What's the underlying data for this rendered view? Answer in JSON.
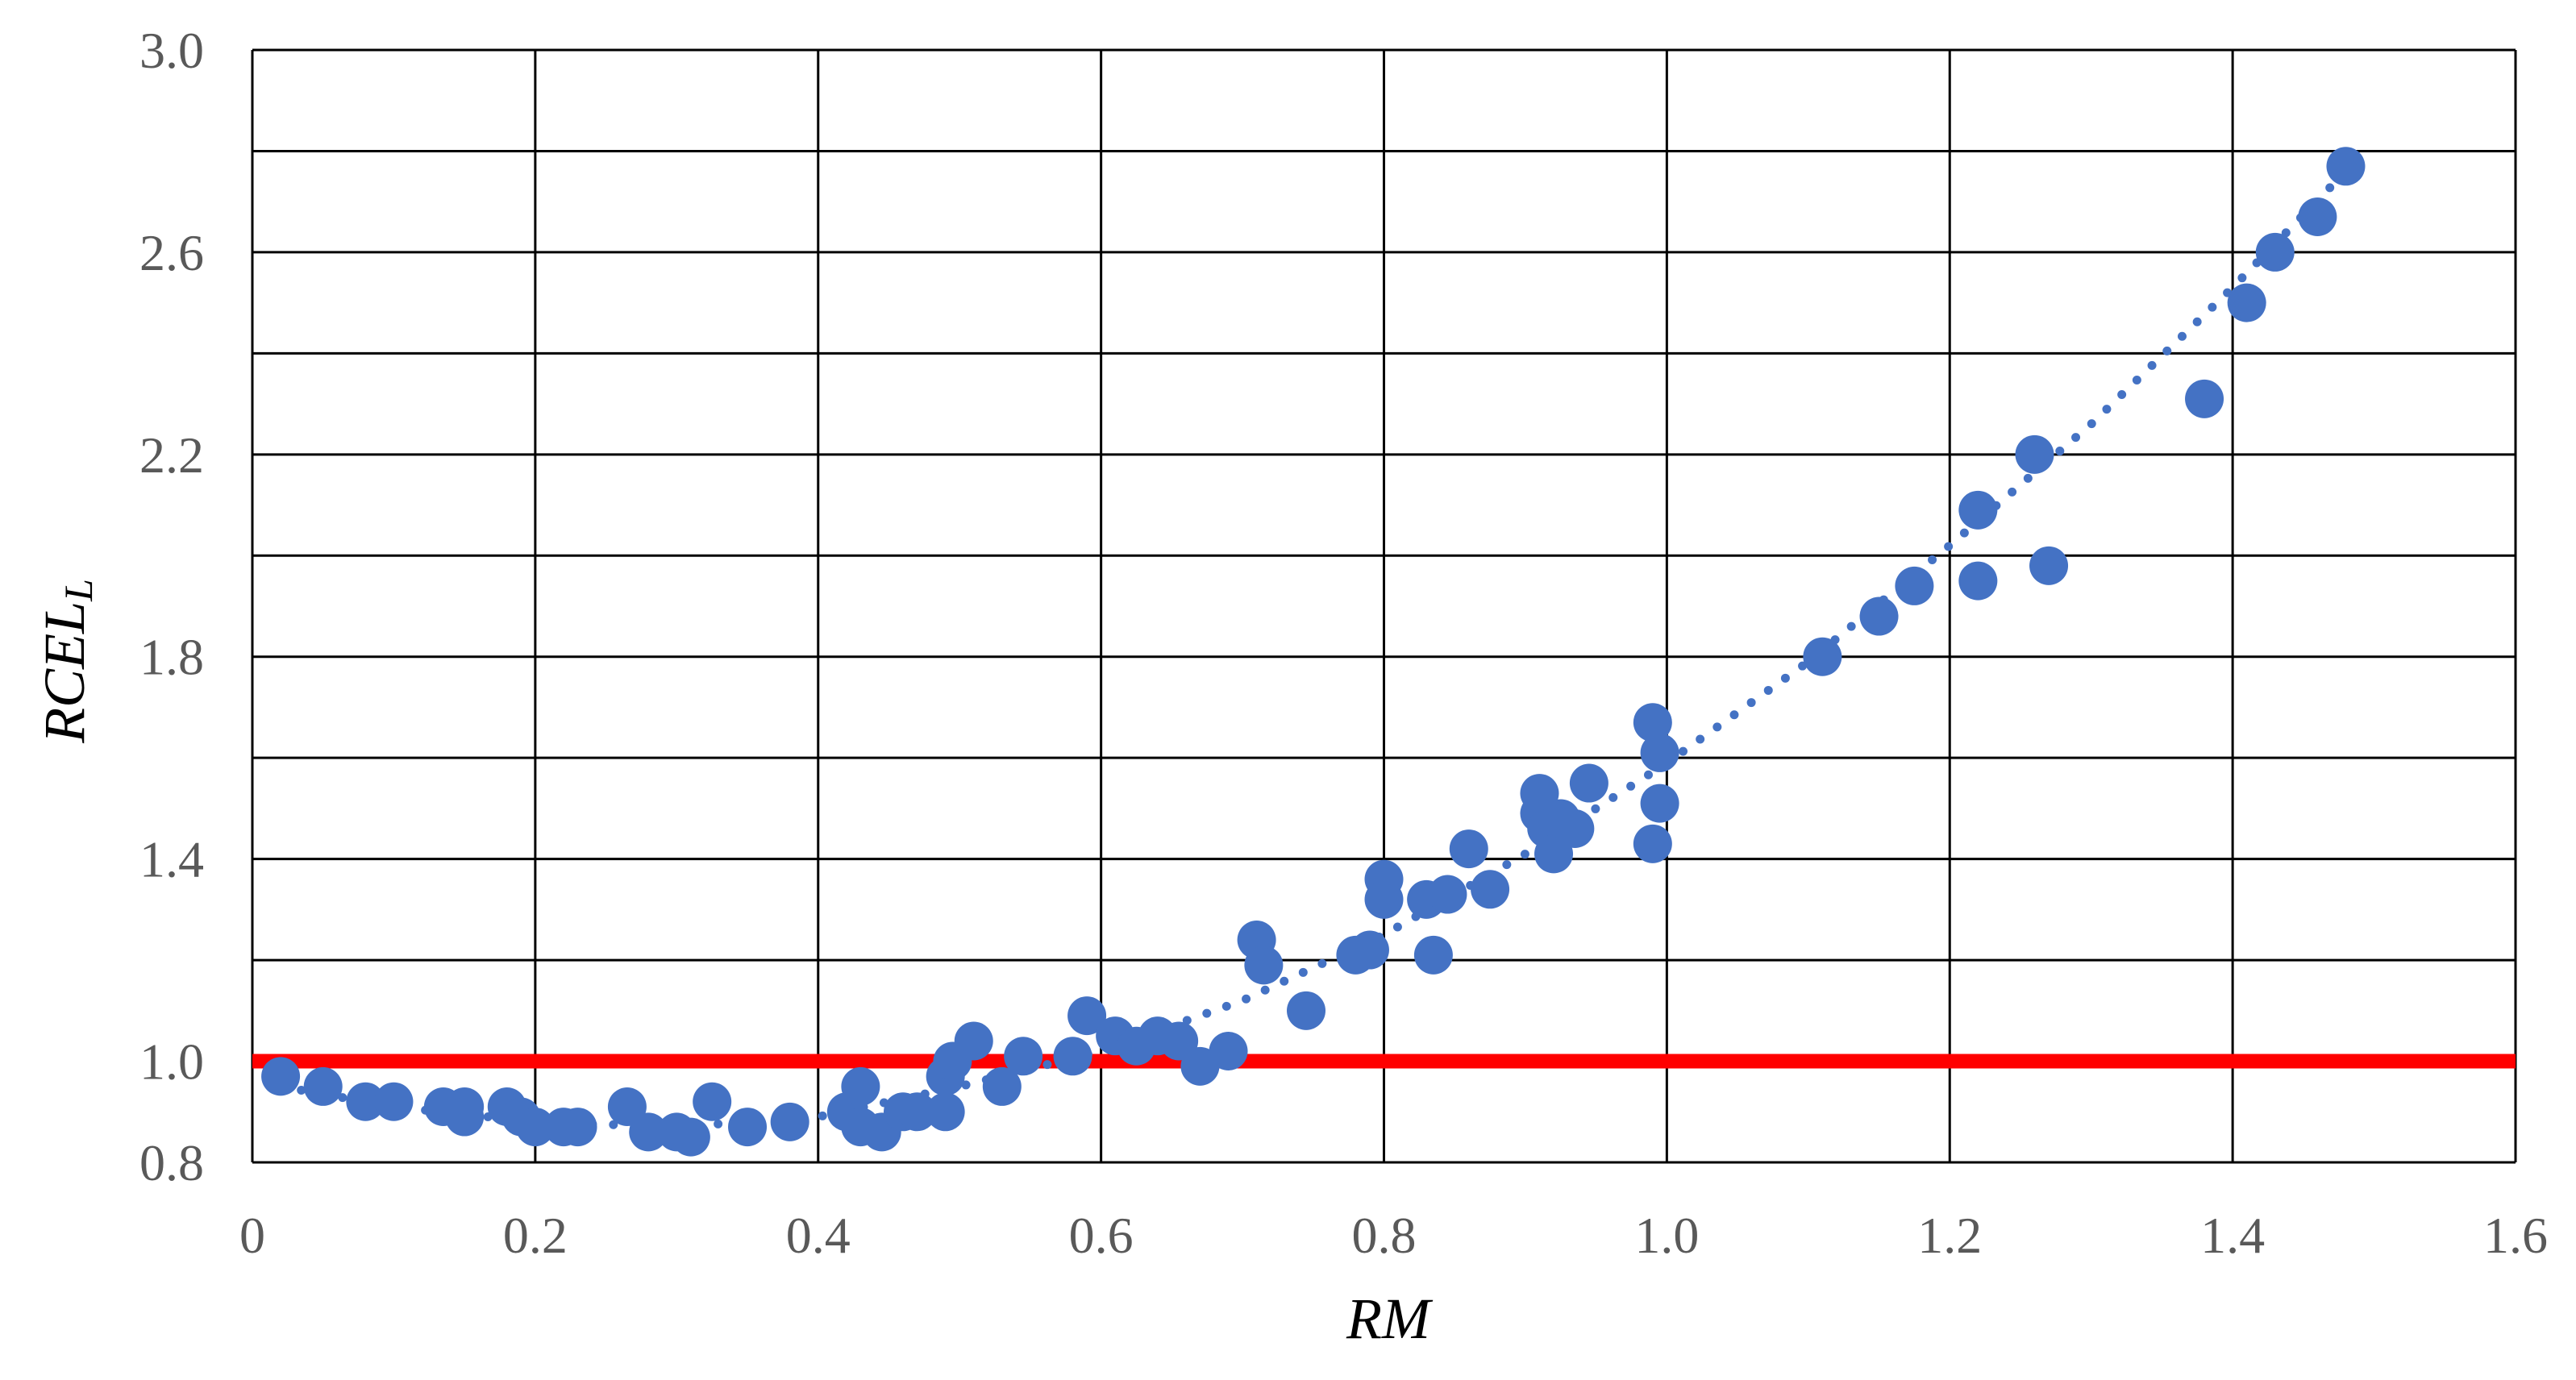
{
  "chart_data": {
    "type": "scatter",
    "xlabel": "RM",
    "ylabel": "RCEL",
    "ylabel_subscript": "L",
    "xlim": [
      0,
      1.6
    ],
    "ylim": [
      0.8,
      3.0
    ],
    "x_ticks": [
      "0",
      "0.2",
      "0.4",
      "0.6",
      "0.8",
      "1.0",
      "1.2",
      "1.4",
      "1.6"
    ],
    "y_ticks": [
      "0.8",
      "1.0",
      "1.4",
      "1.8",
      "2.2",
      "2.6",
      "3.0"
    ],
    "y_tick_values": [
      0.8,
      1.0,
      1.4,
      1.8,
      2.2,
      2.6,
      3.0
    ],
    "x_gridlines": [
      0,
      0.2,
      0.4,
      0.6,
      0.8,
      1.0,
      1.2,
      1.4,
      1.6
    ],
    "y_gridlines": [
      1.0,
      1.2,
      1.4,
      1.6,
      1.8,
      2.0,
      2.2,
      2.4,
      2.6,
      2.8,
      3.0
    ],
    "grid": true,
    "colors": {
      "points": "#4472C4",
      "trendline": "#4472C4",
      "reference_line": "#FF0000",
      "grid": "#000000"
    },
    "reference_line": {
      "y": 1.0
    },
    "trendline": {
      "style": "dotted",
      "x": [
        0.02,
        0.1,
        0.2,
        0.3,
        0.4,
        0.5,
        0.6,
        0.7,
        0.8,
        0.9,
        1.0,
        1.1,
        1.2,
        1.3,
        1.4,
        1.48
      ],
      "y": [
        0.95,
        0.91,
        0.88,
        0.87,
        0.89,
        0.95,
        1.02,
        1.12,
        1.25,
        1.41,
        1.59,
        1.79,
        2.02,
        2.26,
        2.53,
        2.76
      ]
    },
    "points": [
      {
        "x": 0.02,
        "y": 0.97
      },
      {
        "x": 0.05,
        "y": 0.95
      },
      {
        "x": 0.08,
        "y": 0.92
      },
      {
        "x": 0.1,
        "y": 0.92
      },
      {
        "x": 0.135,
        "y": 0.91
      },
      {
        "x": 0.15,
        "y": 0.91
      },
      {
        "x": 0.15,
        "y": 0.89
      },
      {
        "x": 0.18,
        "y": 0.91
      },
      {
        "x": 0.19,
        "y": 0.89
      },
      {
        "x": 0.2,
        "y": 0.87
      },
      {
        "x": 0.22,
        "y": 0.87
      },
      {
        "x": 0.23,
        "y": 0.87
      },
      {
        "x": 0.265,
        "y": 0.91
      },
      {
        "x": 0.28,
        "y": 0.86
      },
      {
        "x": 0.3,
        "y": 0.86
      },
      {
        "x": 0.31,
        "y": 0.85
      },
      {
        "x": 0.325,
        "y": 0.92
      },
      {
        "x": 0.35,
        "y": 0.87
      },
      {
        "x": 0.38,
        "y": 0.88
      },
      {
        "x": 0.42,
        "y": 0.9
      },
      {
        "x": 0.43,
        "y": 0.95
      },
      {
        "x": 0.43,
        "y": 0.87
      },
      {
        "x": 0.445,
        "y": 0.86
      },
      {
        "x": 0.46,
        "y": 0.9
      },
      {
        "x": 0.47,
        "y": 0.9
      },
      {
        "x": 0.49,
        "y": 0.97
      },
      {
        "x": 0.49,
        "y": 0.9
      },
      {
        "x": 0.495,
        "y": 1.0
      },
      {
        "x": 0.51,
        "y": 1.04
      },
      {
        "x": 0.53,
        "y": 0.95
      },
      {
        "x": 0.545,
        "y": 1.01
      },
      {
        "x": 0.58,
        "y": 1.01
      },
      {
        "x": 0.59,
        "y": 1.09
      },
      {
        "x": 0.61,
        "y": 1.05
      },
      {
        "x": 0.625,
        "y": 1.03
      },
      {
        "x": 0.64,
        "y": 1.05
      },
      {
        "x": 0.655,
        "y": 1.04
      },
      {
        "x": 0.67,
        "y": 0.99
      },
      {
        "x": 0.69,
        "y": 1.02
      },
      {
        "x": 0.71,
        "y": 1.24
      },
      {
        "x": 0.715,
        "y": 1.19
      },
      {
        "x": 0.745,
        "y": 1.1
      },
      {
        "x": 0.78,
        "y": 1.21
      },
      {
        "x": 0.79,
        "y": 1.22
      },
      {
        "x": 0.8,
        "y": 1.36
      },
      {
        "x": 0.8,
        "y": 1.32
      },
      {
        "x": 0.83,
        "y": 1.32
      },
      {
        "x": 0.835,
        "y": 1.21
      },
      {
        "x": 0.845,
        "y": 1.33
      },
      {
        "x": 0.86,
        "y": 1.42
      },
      {
        "x": 0.875,
        "y": 1.34
      },
      {
        "x": 0.91,
        "y": 1.53
      },
      {
        "x": 0.91,
        "y": 1.49
      },
      {
        "x": 0.915,
        "y": 1.46
      },
      {
        "x": 0.92,
        "y": 1.41
      },
      {
        "x": 0.925,
        "y": 1.48
      },
      {
        "x": 0.935,
        "y": 1.46
      },
      {
        "x": 0.945,
        "y": 1.55
      },
      {
        "x": 0.99,
        "y": 1.67
      },
      {
        "x": 0.99,
        "y": 1.43
      },
      {
        "x": 0.995,
        "y": 1.61
      },
      {
        "x": 0.995,
        "y": 1.51
      },
      {
        "x": 1.11,
        "y": 1.8
      },
      {
        "x": 1.15,
        "y": 1.88
      },
      {
        "x": 1.175,
        "y": 1.94
      },
      {
        "x": 1.22,
        "y": 2.09
      },
      {
        "x": 1.22,
        "y": 1.95
      },
      {
        "x": 1.26,
        "y": 2.2
      },
      {
        "x": 1.27,
        "y": 1.98
      },
      {
        "x": 1.38,
        "y": 2.31
      },
      {
        "x": 1.41,
        "y": 2.5
      },
      {
        "x": 1.43,
        "y": 2.6
      },
      {
        "x": 1.46,
        "y": 2.67
      },
      {
        "x": 1.48,
        "y": 2.77
      }
    ]
  }
}
